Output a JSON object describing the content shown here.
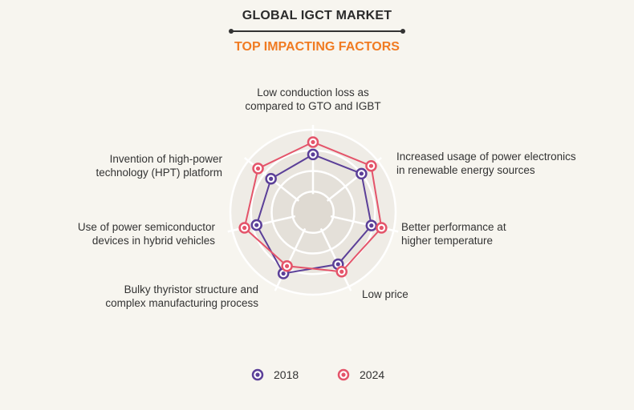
{
  "header": {
    "title": "GLOBAL IGCT MARKET",
    "subtitle": "TOP IMPACTING FACTORS"
  },
  "colors": {
    "series_2018": "#5b3f98",
    "series_2024": "#e4546a",
    "grid": "#ffffff",
    "web_fill": "#e8e4de",
    "title": "#2b2b2b",
    "subtitle": "#f07b22"
  },
  "chart_data": {
    "type": "radar",
    "title": "TOP IMPACTING FACTORS",
    "axes": [
      "Low conduction loss as compared to GTO and IGBT",
      "Increased usage of power electronics in renewable energy sources",
      "Better performance at higher temperature",
      "Low price",
      "Bulky thyristor structure and complex manufacturing process",
      "Use of power semiconductor devices in hybrid vehicles",
      "Invention of high-power technology (HPT) platform"
    ],
    "axis_label_lines": [
      [
        "Low conduction loss as",
        "compared to GTO and IGBT"
      ],
      [
        "Increased usage of power electronics",
        "in renewable energy sources"
      ],
      [
        "Better performance at",
        "higher temperature"
      ],
      [
        "Low price"
      ],
      [
        "Bulky thyristor structure and",
        "complex manufacturing process"
      ],
      [
        "Use of power semiconductor",
        "devices in hybrid vehicles"
      ],
      [
        "Invention of high-power",
        "technology (HPT) platform"
      ]
    ],
    "range": [
      0,
      4
    ],
    "rings": 4,
    "series": [
      {
        "name": "2018",
        "values": [
          2.8,
          3.0,
          2.9,
          2.8,
          3.3,
          2.8,
          2.6
        ]
      },
      {
        "name": "2024",
        "values": [
          3.4,
          3.6,
          3.4,
          3.2,
          2.9,
          3.4,
          3.4
        ]
      }
    ],
    "legend": {
      "position": "bottom-center",
      "entries": [
        "2018",
        "2024"
      ]
    }
  }
}
